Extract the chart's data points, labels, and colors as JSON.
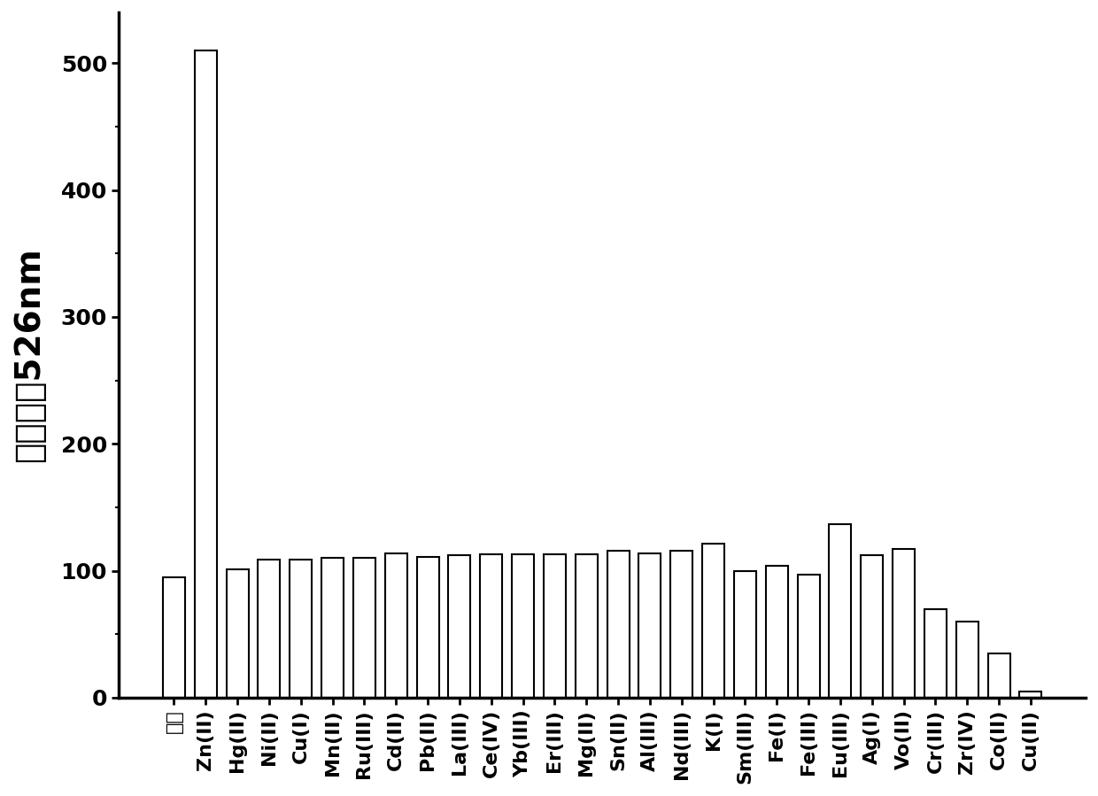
{
  "categories": [
    "试剂",
    "Zn(II)",
    "Hg(II)",
    "Ni(II)",
    "Cu(I)",
    "Mn(II)",
    "Ru(III)",
    "Cd(II)",
    "Pb(II)",
    "La(III)",
    "Ce(IV)",
    "Yb(III)",
    "Er(III)",
    "Mg(II)",
    "Sn(II)",
    "Al(III)",
    "Nd(III)",
    "K(I)",
    "Sm(III)",
    "Fe(I)",
    "Fe(III)",
    "Eu(III)",
    "Ag(I)",
    "Vo(II)",
    "Cr(III)",
    "Zr(IV)",
    "Co(II)",
    "Cu(II)"
  ],
  "values": [
    95,
    510,
    101,
    109,
    109,
    110,
    110,
    114,
    111,
    112,
    113,
    113,
    113,
    113,
    116,
    114,
    116,
    121,
    100,
    104,
    97,
    137,
    112,
    117,
    70,
    60,
    35,
    5
  ],
  "bar_color": "#ffffff",
  "bar_edge_color": "#000000",
  "bar_edge_width": 1.5,
  "ylabel": "荺光强度526nm",
  "ylim": [
    0,
    540
  ],
  "yticks": [
    0,
    100,
    200,
    300,
    400,
    500
  ],
  "background_color": "#ffffff",
  "ylabel_fontsize": 28,
  "tick_fontsize": 18,
  "xtick_fontsize": 16,
  "ylabel_rotation": 90,
  "bar_width": 0.7
}
